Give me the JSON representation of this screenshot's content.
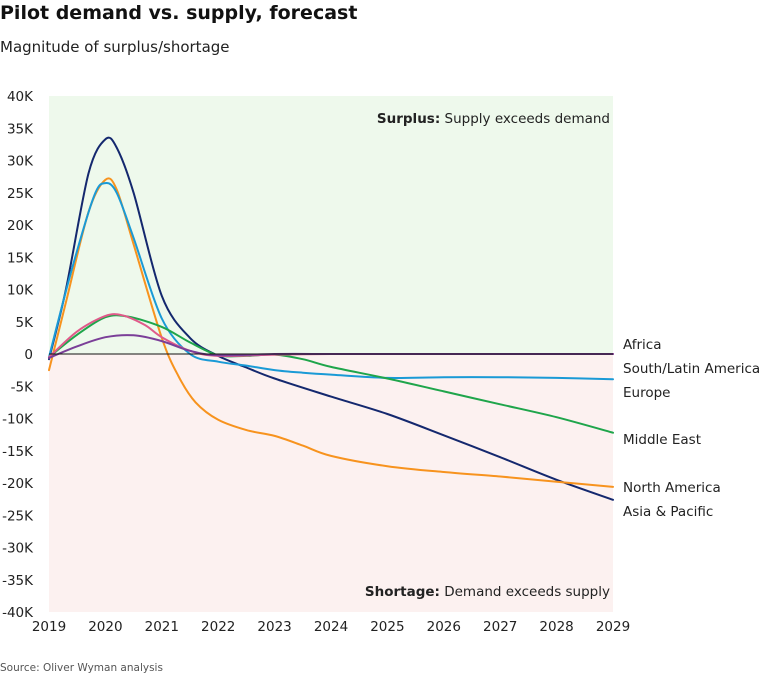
{
  "header": {
    "title": "Pilot demand vs. supply, forecast",
    "subtitle": "Magnitude of surplus/shortage"
  },
  "footer": {
    "source": "Source: Oliver Wyman analysis"
  },
  "annotations": {
    "surplus_bold": "Surplus:",
    "surplus_text": " Supply exceeds demand",
    "shortage_bold": "Shortage:",
    "shortage_text": " Demand exceeds supply"
  },
  "colors": {
    "surplus_bg": "#eef9ec",
    "shortage_bg": "#fcf1f0",
    "zero_line": "#111111"
  },
  "chart_data": {
    "type": "line",
    "title": "Pilot demand vs. supply, forecast",
    "subtitle": "Magnitude of surplus/shortage",
    "xlabel": "",
    "ylabel": "",
    "xlim": [
      2019,
      2029
    ],
    "ylim": [
      -40000,
      40000
    ],
    "x_ticks": [
      2019,
      2020,
      2021,
      2022,
      2023,
      2024,
      2025,
      2026,
      2027,
      2028,
      2029
    ],
    "y_ticks": [
      40000,
      35000,
      30000,
      25000,
      20000,
      15000,
      10000,
      5000,
      0,
      -5000,
      -10000,
      -15000,
      -20000,
      -25000,
      -30000,
      -35000,
      -40000
    ],
    "y_tick_labels": [
      "40K",
      "35K",
      "30K",
      "25K",
      "20K",
      "15K",
      "10K",
      "5K",
      "0",
      "-5K",
      "-10K",
      "-15K",
      "-20K",
      "-25K",
      "-30K",
      "-35K",
      "-40K"
    ],
    "grid": false,
    "legend": "direct labels at right end of lines",
    "series": [
      {
        "name": "Africa",
        "color": "#7b3f98",
        "x": [
          2019,
          2019.5,
          2020,
          2020.5,
          2021,
          2021.5,
          2022,
          2023,
          2024,
          2025,
          2026,
          2027,
          2028,
          2029
        ],
        "values": [
          -600,
          1200,
          2600,
          2900,
          2000,
          500,
          -200,
          0,
          0,
          0,
          0,
          0,
          0,
          0
        ]
      },
      {
        "name": "South/Latin America",
        "color": "#e05a8a",
        "x": [
          2019,
          2019.5,
          2020,
          2020.3,
          2020.7,
          2021,
          2021.5,
          2022,
          2023,
          2024,
          2025,
          2026,
          2027,
          2028,
          2029
        ],
        "values": [
          -500,
          3500,
          5900,
          6000,
          4500,
          2600,
          500,
          -300,
          -100,
          0,
          0,
          0,
          0,
          0,
          0
        ]
      },
      {
        "name": "Europe",
        "color": "#1a9ad6",
        "x": [
          2019,
          2019.4,
          2019.8,
          2020,
          2020.2,
          2020.5,
          2021,
          2021.5,
          2022,
          2022.5,
          2023,
          2023.5,
          2024,
          2025,
          2026,
          2027,
          2028,
          2029
        ],
        "values": [
          -500,
          13000,
          24500,
          26500,
          25000,
          18000,
          5500,
          0,
          -1200,
          -1800,
          -2500,
          -2900,
          -3200,
          -3700,
          -3600,
          -3600,
          -3700,
          -3900
        ]
      },
      {
        "name": "Middle East",
        "color": "#1fa54b",
        "x": [
          2019,
          2019.5,
          2020,
          2020.4,
          2021,
          2021.5,
          2022,
          2022.5,
          2023,
          2023.5,
          2024,
          2025,
          2026,
          2027,
          2028,
          2029
        ],
        "values": [
          -500,
          3000,
          5700,
          5800,
          4200,
          1800,
          -200,
          -300,
          -100,
          -800,
          -2000,
          -3800,
          -5800,
          -7800,
          -9800,
          -12200
        ]
      },
      {
        "name": "North America",
        "color": "#f7931e",
        "x": [
          2019,
          2019.3,
          2019.7,
          2020,
          2020.2,
          2020.5,
          2021,
          2021.3,
          2021.6,
          2022,
          2022.5,
          2023,
          2023.5,
          2024,
          2025,
          2026,
          2027,
          2028,
          2029
        ],
        "values": [
          -2500,
          8000,
          22000,
          27000,
          25500,
          17000,
          2500,
          -3500,
          -7500,
          -10200,
          -11800,
          -12700,
          -14200,
          -15800,
          -17400,
          -18300,
          -19000,
          -19800,
          -20600
        ]
      },
      {
        "name": "Asia & Pacific",
        "color": "#14286e",
        "x": [
          2019,
          2019.3,
          2019.7,
          2020,
          2020.2,
          2020.5,
          2021,
          2021.5,
          2022,
          2022.5,
          2023,
          2024,
          2025,
          2026,
          2027,
          2028,
          2029
        ],
        "values": [
          -800,
          10000,
          28000,
          33300,
          32000,
          25000,
          9000,
          2500,
          -300,
          -2100,
          -3800,
          -6600,
          -9300,
          -12600,
          -16000,
          -19500,
          -22600
        ]
      }
    ],
    "labels_order": [
      "Africa",
      "South/Latin America",
      "Europe",
      "Middle East",
      "North America",
      "Asia & Pacific"
    ],
    "annotations": [
      "Surplus: Supply exceeds demand",
      "Shortage: Demand exceeds supply"
    ]
  }
}
